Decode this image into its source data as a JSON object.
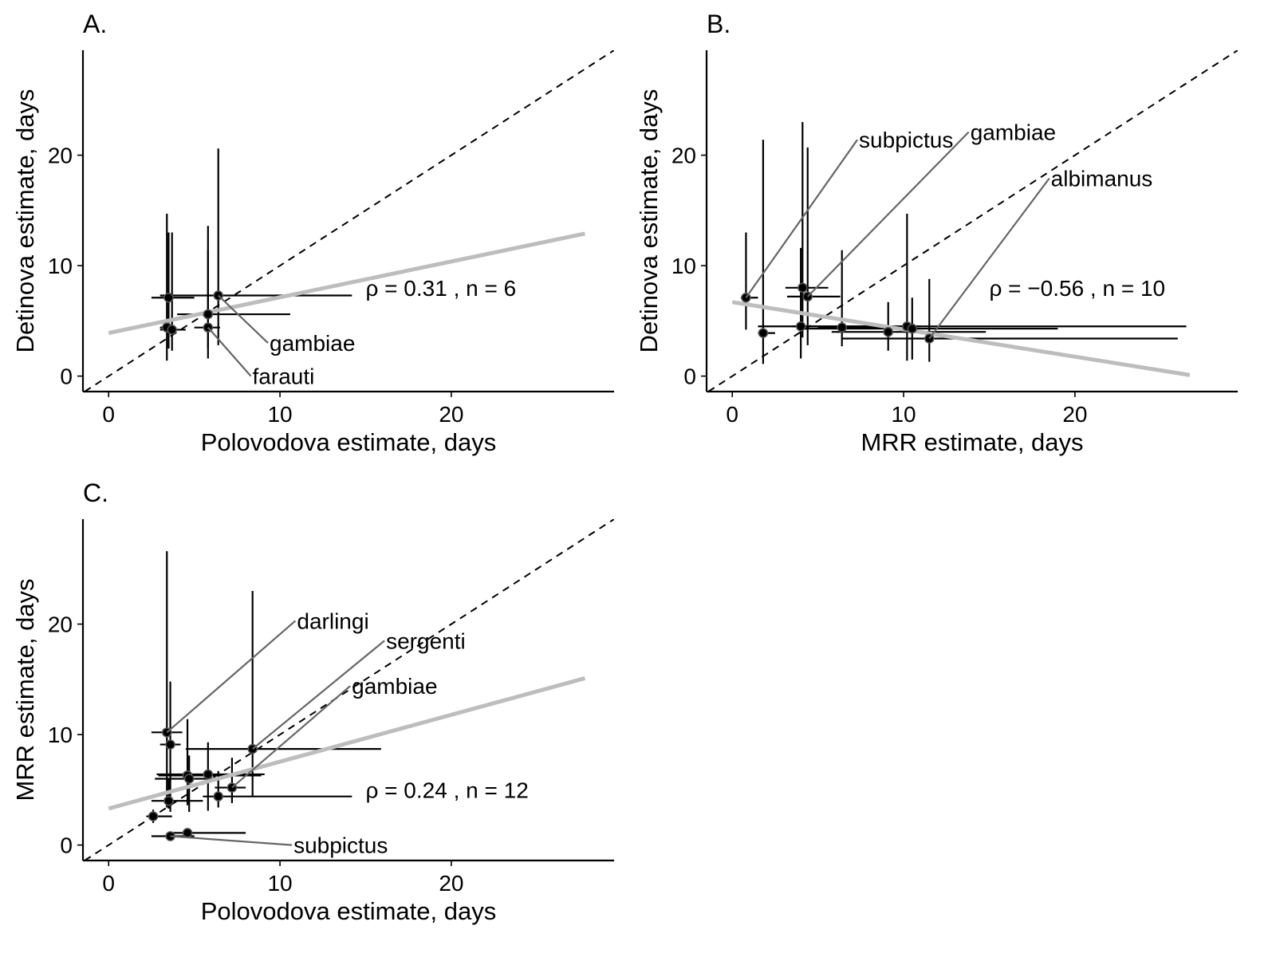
{
  "chart_data": [
    {
      "type": "scatter",
      "panel": "A.",
      "xlabel": "Polovodova estimate, days",
      "ylabel": "Detinova estimate, days",
      "xlim": [
        -1.5,
        29.5
      ],
      "ylim": [
        -1.4,
        29.5
      ],
      "xticks": [
        0,
        10,
        20
      ],
      "yticks": [
        0,
        10,
        20
      ],
      "identity_line": true,
      "fit_line": {
        "x": [
          0,
          27.8
        ],
        "y": [
          3.9,
          12.9
        ]
      },
      "annotation": {
        "text": "ρ = 0.31 ,  n = 6",
        "x": 15,
        "y": 8
      },
      "points": [
        {
          "x": 3.5,
          "y": 7.1,
          "xerr": [
            2.5,
            5.0
          ],
          "yerr": [
            2.5,
            13.0
          ]
        },
        {
          "x": 3.4,
          "y": 4.4,
          "xerr": [
            3.0,
            3.9
          ],
          "yerr": [
            1.4,
            14.7
          ]
        },
        {
          "x": 3.7,
          "y": 4.2,
          "xerr": [
            3.0,
            4.5
          ],
          "yerr": [
            2.3,
            13.0
          ]
        },
        {
          "x": 6.4,
          "y": 7.3,
          "xerr": [
            3.0,
            14.2
          ],
          "yerr": [
            2.8,
            20.6
          ]
        },
        {
          "x": 5.8,
          "y": 5.6,
          "xerr": [
            4.0,
            10.6
          ],
          "yerr": [
            2.5,
            11.4
          ]
        },
        {
          "x": 5.8,
          "y": 4.4,
          "xerr": [
            5.0,
            6.5
          ],
          "yerr": [
            1.6,
            13.6
          ]
        }
      ],
      "labels": [
        {
          "text": "gambiae",
          "x": 9.3,
          "y": 3.0,
          "from": [
            6.4,
            7.3
          ]
        },
        {
          "text": "farauti",
          "x": 8.3,
          "y": 0.0,
          "from": [
            5.8,
            4.4
          ]
        }
      ]
    },
    {
      "type": "scatter",
      "panel": "B.",
      "xlabel": "MRR estimate, days",
      "ylabel": "Detinova estimate, days",
      "xlim": [
        -1.5,
        29.5
      ],
      "ylim": [
        -1.4,
        29.5
      ],
      "xticks": [
        0,
        10,
        20
      ],
      "yticks": [
        0,
        10,
        20
      ],
      "identity_line": true,
      "fit_line": {
        "x": [
          0,
          26.7
        ],
        "y": [
          6.7,
          0.1
        ]
      },
      "annotation": {
        "text": "ρ = −0.56 ,  n = 10",
        "x": 15,
        "y": 8
      },
      "points": [
        {
          "x": 0.8,
          "y": 7.1,
          "xerr": [
            0.5,
            1.5
          ],
          "yerr": [
            4.2,
            13.0
          ]
        },
        {
          "x": 1.8,
          "y": 3.9,
          "xerr": [
            1.5,
            2.5
          ],
          "yerr": [
            1.1,
            21.4
          ]
        },
        {
          "x": 4.1,
          "y": 8.0,
          "xerr": [
            3.1,
            5.6
          ],
          "yerr": [
            3.5,
            23.0
          ]
        },
        {
          "x": 4.4,
          "y": 7.2,
          "xerr": [
            3.2,
            6.3
          ],
          "yerr": [
            2.8,
            20.7
          ]
        },
        {
          "x": 4.0,
          "y": 4.5,
          "xerr": [
            1.5,
            11.0
          ],
          "yerr": [
            1.6,
            11.6
          ]
        },
        {
          "x": 6.4,
          "y": 4.4,
          "xerr": [
            5.0,
            10.0
          ],
          "yerr": [
            2.7,
            11.4
          ]
        },
        {
          "x": 9.1,
          "y": 4.0,
          "xerr": [
            5.8,
            14.8
          ],
          "yerr": [
            2.3,
            6.7
          ]
        },
        {
          "x": 10.2,
          "y": 4.5,
          "xerr": [
            3.5,
            26.5
          ],
          "yerr": [
            1.4,
            14.7
          ]
        },
        {
          "x": 10.5,
          "y": 4.3,
          "xerr": [
            4.0,
            19.0
          ],
          "yerr": [
            1.5,
            7.1
          ]
        },
        {
          "x": 11.5,
          "y": 3.4,
          "xerr": [
            6.4,
            26.0
          ],
          "yerr": [
            1.3,
            8.8
          ]
        }
      ],
      "labels": [
        {
          "text": "subpictus",
          "x": 7.3,
          "y": 21.4,
          "from": [
            0.8,
            7.1
          ]
        },
        {
          "text": "gambiae",
          "x": 13.8,
          "y": 22.1,
          "from": [
            4.4,
            7.2
          ]
        },
        {
          "text": "albimanus",
          "x": 18.5,
          "y": 17.9,
          "from": [
            11.5,
            3.4
          ]
        }
      ]
    },
    {
      "type": "scatter",
      "panel": "C.",
      "xlabel": "Polovodova estimate, days",
      "ylabel": "MRR estimate, days",
      "xlim": [
        -1.5,
        29.5
      ],
      "ylim": [
        -1.4,
        29.5
      ],
      "xticks": [
        0,
        10,
        20
      ],
      "yticks": [
        0,
        10,
        20
      ],
      "identity_line": true,
      "fit_line": {
        "x": [
          0,
          27.8
        ],
        "y": [
          3.3,
          15.1
        ]
      },
      "annotation": {
        "text": "ρ = 0.24 ,  n = 12",
        "x": 15,
        "y": 5
      },
      "points": [
        {
          "x": 3.4,
          "y": 10.2,
          "xerr": [
            2.5,
            4.3
          ],
          "yerr": [
            3.4,
            26.6
          ]
        },
        {
          "x": 3.6,
          "y": 9.1,
          "xerr": [
            3.0,
            4.2
          ],
          "yerr": [
            3.0,
            14.8
          ]
        },
        {
          "x": 4.6,
          "y": 6.3,
          "xerr": [
            2.9,
            8.9
          ],
          "yerr": [
            3.6,
            11.4
          ]
        },
        {
          "x": 4.7,
          "y": 6.0,
          "xerr": [
            2.7,
            6.3
          ],
          "yerr": [
            3.0,
            8.1
          ]
        },
        {
          "x": 5.8,
          "y": 6.4,
          "xerr": [
            2.8,
            9.1
          ],
          "yerr": [
            3.1,
            9.3
          ]
        },
        {
          "x": 8.4,
          "y": 8.7,
          "xerr": [
            4.5,
            15.9
          ],
          "yerr": [
            4.4,
            23.0
          ]
        },
        {
          "x": 6.4,
          "y": 4.4,
          "xerr": [
            5.5,
            14.2
          ],
          "yerr": [
            3.4,
            6.7
          ]
        },
        {
          "x": 7.2,
          "y": 5.2,
          "xerr": [
            6.2,
            8.0
          ],
          "yerr": [
            3.8,
            7.9
          ]
        },
        {
          "x": 3.5,
          "y": 4.0,
          "xerr": [
            2.5,
            5.5
          ],
          "yerr": [
            3.3,
            6.0
          ]
        },
        {
          "x": 2.6,
          "y": 2.6,
          "xerr": [
            2.2,
            3.7
          ],
          "yerr": [
            2.0,
            3.2
          ]
        },
        {
          "x": 3.6,
          "y": 0.8,
          "xerr": [
            2.5,
            5.0
          ],
          "yerr": [
            0.6,
            1.0
          ]
        },
        {
          "x": 4.6,
          "y": 1.1,
          "xerr": [
            3.5,
            8.0
          ],
          "yerr": [
            0.9,
            1.3
          ]
        }
      ],
      "labels": [
        {
          "text": "darlingi",
          "x": 10.9,
          "y": 20.3,
          "from": [
            3.4,
            10.2
          ]
        },
        {
          "text": "sergenti",
          "x": 16.1,
          "y": 18.5,
          "from": [
            8.4,
            8.7
          ]
        },
        {
          "text": "gambiae",
          "x": 14.1,
          "y": 14.4,
          "from": [
            7.2,
            5.2
          ]
        },
        {
          "text": "subpictus",
          "x": 10.7,
          "y": 0.0,
          "from": [
            3.6,
            0.8
          ]
        }
      ]
    }
  ]
}
